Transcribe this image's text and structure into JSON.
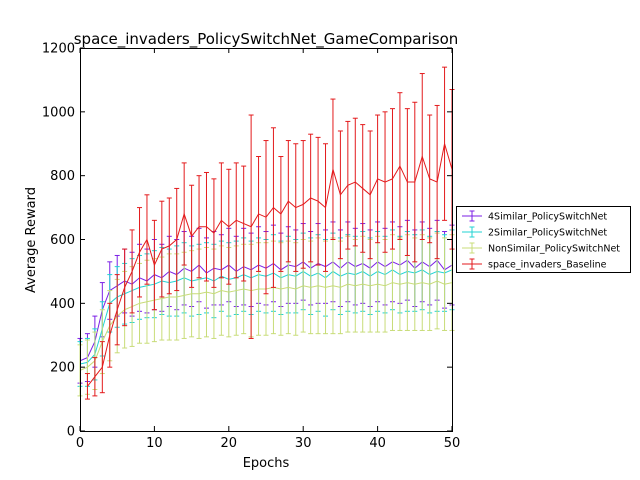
{
  "chart_data": {
    "type": "line",
    "title": "space_invaders_PolicySwitchNet_GameComparison",
    "xlabel": "Epochs",
    "ylabel": "Average Reward",
    "xlim": [
      0,
      50
    ],
    "ylim": [
      0,
      1200
    ],
    "xticks": [
      "0",
      "10",
      "20",
      "30",
      "40",
      "50"
    ],
    "yticks": [
      "0",
      "200",
      "400",
      "600",
      "800",
      "1000",
      "1200"
    ],
    "grid": false,
    "legend_position": "right",
    "x": [
      0,
      1,
      2,
      3,
      4,
      5,
      6,
      7,
      8,
      9,
      10,
      11,
      12,
      13,
      14,
      15,
      16,
      17,
      18,
      19,
      20,
      21,
      22,
      23,
      24,
      25,
      26,
      27,
      28,
      29,
      30,
      31,
      32,
      33,
      34,
      35,
      36,
      37,
      38,
      39,
      40,
      41,
      42,
      43,
      44,
      45,
      46,
      47,
      48,
      49,
      50
    ],
    "series": [
      {
        "name": "4Similar_PolicySwitchNet",
        "color": "#7b1fe6",
        "values": [
          220,
          230,
          280,
          380,
          440,
          455,
          470,
          460,
          480,
          470,
          490,
          480,
          500,
          490,
          510,
          500,
          520,
          495,
          510,
          505,
          520,
          500,
          515,
          505,
          520,
          510,
          525,
          505,
          520,
          515,
          530,
          510,
          525,
          515,
          530,
          510,
          530,
          515,
          525,
          510,
          530,
          515,
          530,
          520,
          535,
          510,
          530,
          515,
          535,
          505,
          520
        ],
        "err": [
          70,
          75,
          80,
          85,
          90,
          95,
          100,
          100,
          105,
          100,
          110,
          105,
          110,
          110,
          115,
          110,
          115,
          110,
          115,
          110,
          115,
          110,
          120,
          115,
          120,
          115,
          120,
          115,
          120,
          115,
          120,
          115,
          125,
          115,
          125,
          120,
          125,
          120,
          125,
          120,
          125,
          120,
          125,
          120,
          125,
          120,
          125,
          120,
          125,
          120,
          125
        ]
      },
      {
        "name": "2Similar_PolicySwitchNet",
        "color": "#22d3d3",
        "values": [
          210,
          215,
          240,
          320,
          400,
          420,
          430,
          440,
          450,
          455,
          460,
          470,
          465,
          470,
          480,
          470,
          475,
          480,
          470,
          485,
          475,
          480,
          490,
          480,
          490,
          485,
          495,
          480,
          490,
          485,
          500,
          485,
          495,
          480,
          500,
          485,
          495,
          490,
          500,
          485,
          500,
          490,
          505,
          490,
          500,
          495,
          505,
          490,
          500,
          495,
          505
        ],
        "err": [
          70,
          75,
          80,
          85,
          90,
          95,
          95,
          100,
          100,
          100,
          105,
          105,
          105,
          110,
          110,
          110,
          110,
          110,
          115,
          110,
          115,
          115,
          115,
          115,
          115,
          115,
          120,
          115,
          120,
          115,
          120,
          120,
          120,
          120,
          120,
          120,
          120,
          120,
          125,
          120,
          125,
          120,
          125,
          120,
          125,
          120,
          125,
          120,
          125,
          120,
          125
        ]
      },
      {
        "name": "NonSimilar_PolicySwitchNet",
        "color": "#c8dc78",
        "values": [
          190,
          200,
          220,
          280,
          330,
          360,
          380,
          390,
          400,
          405,
          410,
          415,
          420,
          420,
          425,
          430,
          430,
          435,
          430,
          440,
          435,
          440,
          445,
          440,
          445,
          445,
          450,
          445,
          450,
          445,
          455,
          450,
          455,
          450,
          455,
          450,
          460,
          455,
          460,
          455,
          460,
          455,
          465,
          460,
          465,
          460,
          465,
          460,
          470,
          460,
          465
        ],
        "err": [
          80,
          85,
          90,
          100,
          110,
          115,
          120,
          125,
          125,
          130,
          130,
          130,
          135,
          135,
          135,
          135,
          140,
          140,
          140,
          140,
          140,
          140,
          140,
          145,
          145,
          145,
          145,
          145,
          145,
          145,
          145,
          145,
          150,
          145,
          150,
          145,
          150,
          145,
          150,
          145,
          150,
          145,
          150,
          145,
          150,
          145,
          150,
          145,
          150,
          145,
          150
        ]
      },
      {
        "name": "space_invaders_Baseline",
        "color": "#e31a1c",
        "values": [
          null,
          140,
          170,
          200,
          300,
          380,
          450,
          500,
          560,
          600,
          520,
          570,
          580,
          600,
          680,
          610,
          640,
          640,
          620,
          660,
          640,
          660,
          650,
          640,
          680,
          670,
          700,
          680,
          720,
          700,
          710,
          730,
          720,
          700,
          820,
          740,
          770,
          780,
          760,
          740,
          790,
          780,
          790,
          830,
          780,
          780,
          860,
          790,
          780,
          900,
          820
        ],
        "err": [
          0,
          40,
          60,
          80,
          100,
          110,
          120,
          130,
          140,
          140,
          140,
          150,
          150,
          160,
          160,
          160,
          160,
          170,
          170,
          180,
          180,
          180,
          180,
          350,
          180,
          240,
          250,
          180,
          190,
          200,
          200,
          200,
          200,
          200,
          220,
          200,
          200,
          200,
          200,
          200,
          200,
          220,
          220,
          230,
          230,
          250,
          260,
          200,
          240,
          240,
          250
        ]
      }
    ]
  }
}
